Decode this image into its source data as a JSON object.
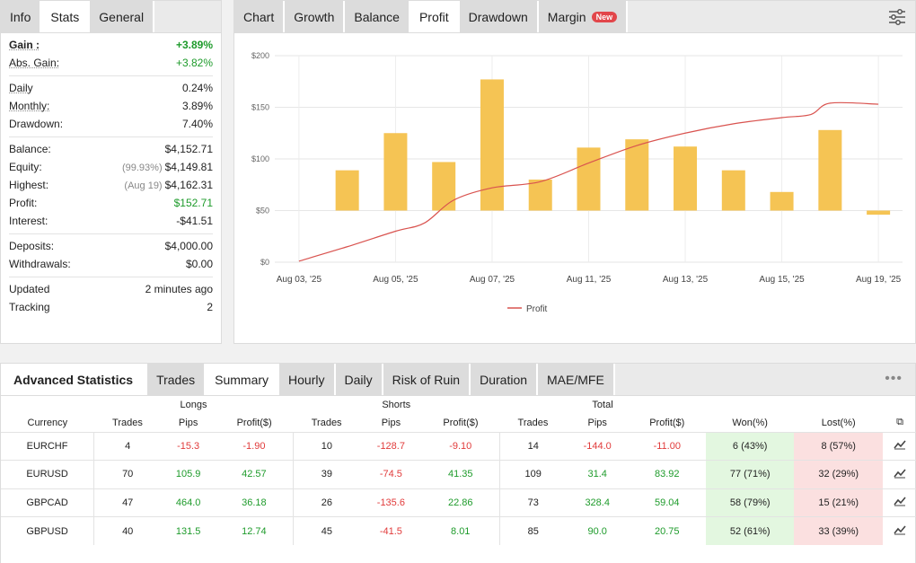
{
  "info": {
    "tabs": [
      "Info",
      "Stats",
      "General"
    ],
    "groups": [
      [
        {
          "label": "Gain :",
          "value": "+3.89%",
          "style": "green bold",
          "ul": true,
          "bold": true
        },
        {
          "label": "Abs. Gain:",
          "value": "+3.82%",
          "style": "green",
          "ul": true
        }
      ],
      [
        {
          "label": "Daily",
          "value": "0.24%",
          "ul": true
        },
        {
          "label": "Monthly:",
          "value": "3.89%",
          "ul": true
        },
        {
          "label": "Drawdown:",
          "value": "7.40%"
        }
      ],
      [
        {
          "label": "Balance:",
          "value": "$4,152.71"
        },
        {
          "label": "Equity:",
          "note": "(99.93%)",
          "value": "$4,149.81"
        },
        {
          "label": "Highest:",
          "note": "(Aug 19)",
          "value": "$4,162.31"
        },
        {
          "label": "Profit:",
          "value": "$152.71",
          "style": "green"
        },
        {
          "label": "Interest:",
          "value": "-$41.51"
        }
      ],
      [
        {
          "label": "Deposits:",
          "value": "$4,000.00"
        },
        {
          "label": "Withdrawals:",
          "value": "$0.00"
        }
      ],
      [
        {
          "label": "Updated",
          "value": "2 minutes ago"
        },
        {
          "label": "Tracking",
          "value": "2"
        }
      ]
    ]
  },
  "chart_tabs": [
    {
      "label": "Chart"
    },
    {
      "label": "Growth"
    },
    {
      "label": "Balance"
    },
    {
      "label": "Profit",
      "active": true
    },
    {
      "label": "Drawdown"
    },
    {
      "label": "Margin",
      "badge": "New"
    }
  ],
  "chart_data": {
    "type": "bar",
    "title": "",
    "bar_baseline": 50,
    "ylim": [
      0,
      200
    ],
    "yticks": [
      0,
      50,
      100,
      150,
      200
    ],
    "ytick_labels": [
      "$0",
      "$50",
      "$100",
      "$150",
      "$200"
    ],
    "xtick_labels": [
      "Aug 03, '25",
      "Aug 05, '25",
      "Aug 07, '25",
      "Aug 11, '25",
      "Aug 13, '25",
      "Aug 15, '25",
      "Aug 19, '25"
    ],
    "bar_color": "#f5c454",
    "line_color": "#d9534f",
    "bars": [
      {
        "x": 1,
        "value": 89
      },
      {
        "x": 2,
        "value": 125
      },
      {
        "x": 3,
        "value": 97
      },
      {
        "x": 4,
        "value": 177
      },
      {
        "x": 5,
        "value": 80
      },
      {
        "x": 6,
        "value": 111
      },
      {
        "x": 7,
        "value": 119
      },
      {
        "x": 8,
        "value": 112
      },
      {
        "x": 9,
        "value": 89
      },
      {
        "x": 10,
        "value": 68
      },
      {
        "x": 11,
        "value": 128
      },
      {
        "x": 12,
        "value": 46
      }
    ],
    "line": [
      {
        "x": 0,
        "y": 1
      },
      {
        "x": 1,
        "y": 15
      },
      {
        "x": 2,
        "y": 30
      },
      {
        "x": 2.6,
        "y": 38
      },
      {
        "x": 3.2,
        "y": 60
      },
      {
        "x": 4,
        "y": 72
      },
      {
        "x": 5,
        "y": 78
      },
      {
        "x": 6,
        "y": 96
      },
      {
        "x": 7,
        "y": 113
      },
      {
        "x": 8,
        "y": 125
      },
      {
        "x": 9,
        "y": 134
      },
      {
        "x": 10,
        "y": 140
      },
      {
        "x": 10.6,
        "y": 143
      },
      {
        "x": 11,
        "y": 154
      },
      {
        "x": 12,
        "y": 153
      }
    ],
    "legend": "Profit"
  },
  "adv": {
    "title": "Advanced Statistics",
    "tabs": [
      {
        "label": "Trades"
      },
      {
        "label": "Summary",
        "active": true
      },
      {
        "label": "Hourly"
      },
      {
        "label": "Daily"
      },
      {
        "label": "Risk of Ruin"
      },
      {
        "label": "Duration"
      },
      {
        "label": "MAE/MFE"
      }
    ],
    "more": "•••",
    "group_headers": {
      "longs": "Longs",
      "shorts": "Shorts",
      "total": "Total"
    },
    "columns": [
      "Currency",
      "Trades",
      "Pips",
      "Profit($)",
      "Trades",
      "Pips",
      "Profit($)",
      "Trades",
      "Pips",
      "Profit($)",
      "Won(%)",
      "Lost(%)"
    ],
    "rows": [
      [
        "EURCHF",
        "4",
        "-15.3",
        "-1.90",
        "10",
        "-128.7",
        "-9.10",
        "14",
        "-144.0",
        "-11.00",
        "6 (43%)",
        "8 (57%)"
      ],
      [
        "EURUSD",
        "70",
        "105.9",
        "42.57",
        "39",
        "-74.5",
        "41.35",
        "109",
        "31.4",
        "83.92",
        "77 (71%)",
        "32 (29%)"
      ],
      [
        "GBPCAD",
        "47",
        "464.0",
        "36.18",
        "26",
        "-135.6",
        "22.86",
        "73",
        "328.4",
        "59.04",
        "58 (79%)",
        "15 (21%)"
      ],
      [
        "GBPUSD",
        "40",
        "131.5",
        "12.74",
        "45",
        "-41.5",
        "8.01",
        "85",
        "90.0",
        "20.75",
        "52 (61%)",
        "33 (39%)"
      ]
    ]
  }
}
